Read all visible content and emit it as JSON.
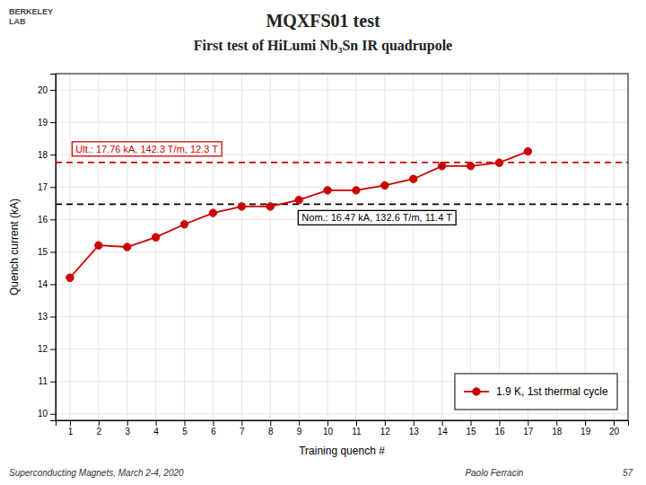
{
  "chart_data": {
    "type": "line",
    "title": "MQXFS01 test",
    "subtitle": "First test of HiLumi Nb₃Sn IR quadrupole",
    "x_label": "Training quench #",
    "y_label": "Quench current (kA)",
    "x": [
      1,
      2,
      3,
      4,
      5,
      6,
      7,
      8,
      9,
      10,
      11,
      12,
      13,
      14,
      15,
      16,
      17
    ],
    "series": [
      {
        "name": "1.9 K, 1st thermal cycle",
        "color": "#cc0000",
        "marker": "circle",
        "line_style": "solid",
        "values": [
          14.2,
          15.2,
          15.15,
          15.45,
          15.85,
          16.2,
          16.4,
          16.4,
          16.6,
          16.9,
          16.9,
          17.05,
          17.25,
          17.65,
          17.65,
          17.75,
          18.1
        ]
      }
    ],
    "reference_lines": [
      {
        "value": 16.47,
        "label": "Nom.: 16.47 kA, 132.6 T/m, 11.4 T",
        "color": "#000000",
        "line_style": "dashed"
      },
      {
        "value": 17.76,
        "label": "Ult.: 17.76 kA, 142.3 T/m, 12.3 T",
        "color": "#cc0000",
        "line_style": "dashed"
      }
    ],
    "annotations": [
      "BERKELEY",
      "LAB",
      "Superconducting Magnets, March 2-4, 2020",
      "Paolo Ferracin",
      "57"
    ],
    "xlim": [
      0.5,
      20.5
    ],
    "ylim": [
      9.8,
      20.5
    ],
    "xticks": [
      1,
      2,
      3,
      4,
      5,
      6,
      7,
      8,
      9,
      10,
      11,
      12,
      13,
      14,
      15,
      16,
      17,
      18,
      19,
      20
    ],
    "yticks": [
      10,
      11,
      12,
      13,
      14,
      15,
      16,
      17,
      18,
      19,
      20
    ],
    "grid": true,
    "legend": "lower right"
  }
}
